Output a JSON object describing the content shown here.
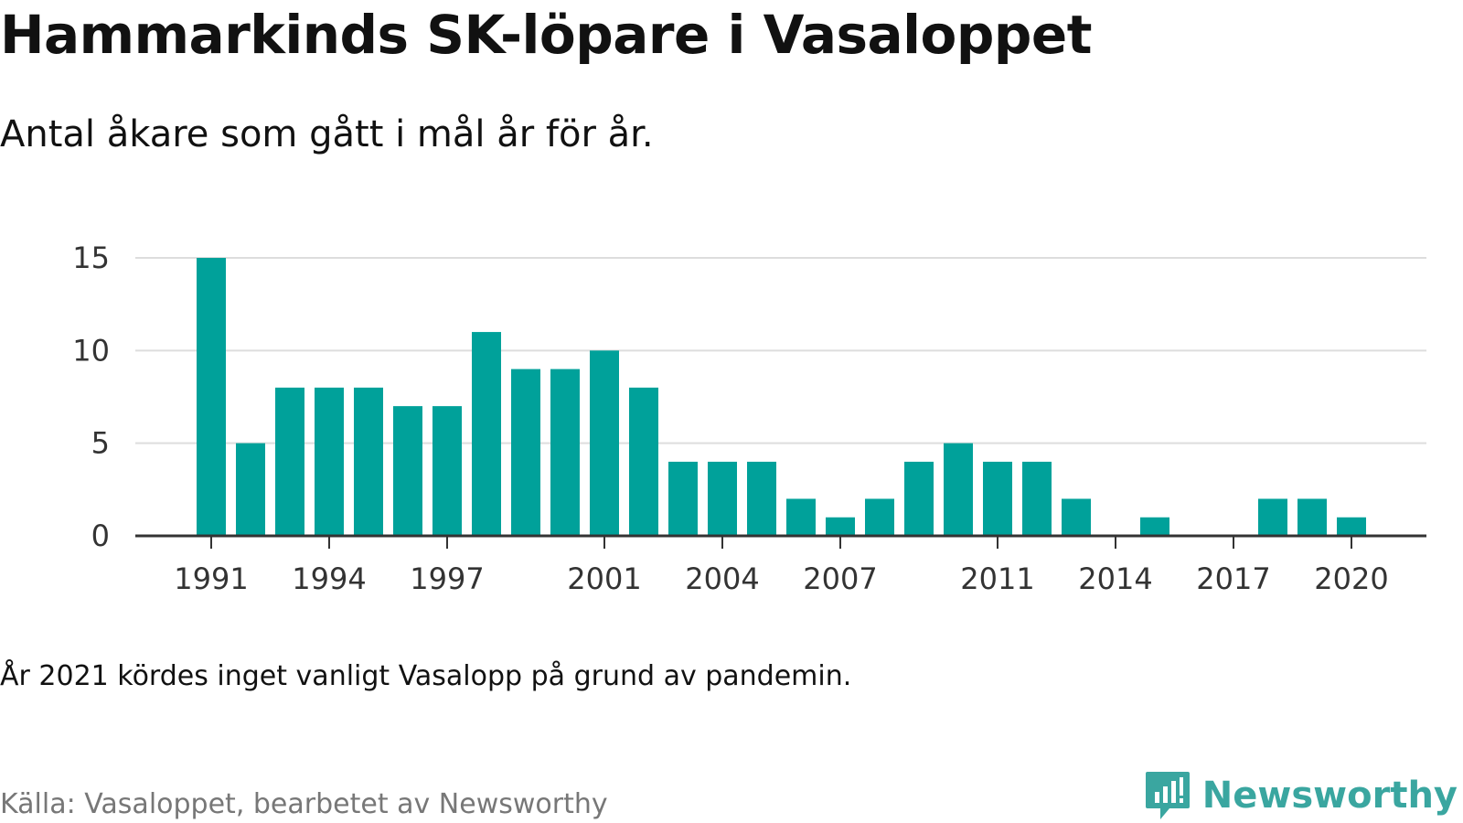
{
  "title": "Hammarkinds SK-löpare i Vasaloppet",
  "subtitle": "Antal åkare som gått i mål år för år.",
  "note": "År 2021 kördes inget vanligt Vasalopp på grund av pandemin.",
  "source": "Källa: Vasaloppet, bearbetet av Newsworthy",
  "brand": {
    "name": "Newsworthy",
    "icon": "newsworthy-logo-icon",
    "color": "#3aa6a0"
  },
  "colors": {
    "bar": "#00a19a",
    "grid": "#dddddd",
    "axis": "#333333"
  },
  "chart_data": {
    "type": "bar",
    "x": [
      1991,
      1992,
      1993,
      1994,
      1995,
      1996,
      1997,
      1998,
      1999,
      2000,
      2001,
      2002,
      2003,
      2004,
      2005,
      2006,
      2007,
      2008,
      2009,
      2010,
      2011,
      2012,
      2013,
      2014,
      2015,
      2016,
      2017,
      2018,
      2019,
      2020
    ],
    "values": [
      15,
      5,
      8,
      8,
      8,
      7,
      7,
      11,
      9,
      9,
      10,
      8,
      4,
      4,
      4,
      2,
      1,
      2,
      4,
      5,
      4,
      4,
      2,
      0,
      1,
      0,
      0,
      2,
      2,
      1
    ],
    "x_tick_labels": [
      "1991",
      "1994",
      "1997",
      "2001",
      "2004",
      "2007",
      "2011",
      "2014",
      "2017",
      "2020"
    ],
    "y_ticks": [
      0,
      5,
      10,
      15
    ],
    "ylim": [
      0,
      15
    ],
    "grid": true,
    "xlabel": "",
    "ylabel": ""
  }
}
